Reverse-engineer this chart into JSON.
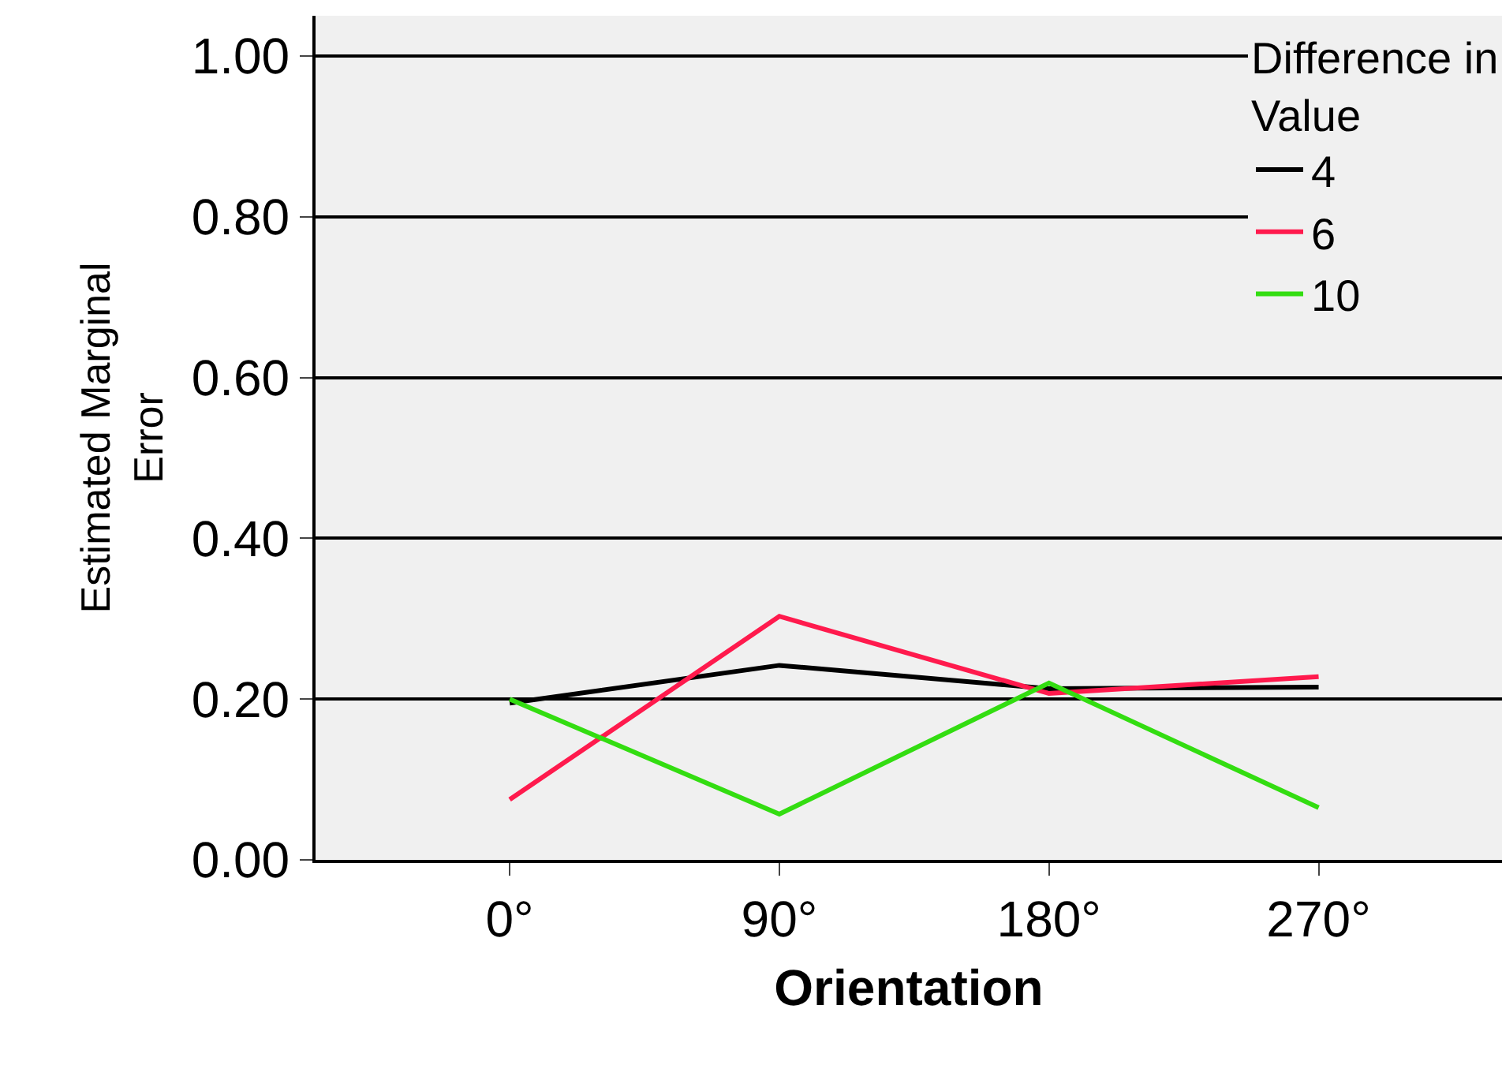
{
  "chart_data": {
    "type": "line",
    "xlabel": "Orientation",
    "ylabel": "Estimated Marginal Error",
    "legend_title": "Difference in Value",
    "categories": [
      "0°",
      "90°",
      "180°",
      "270°"
    ],
    "series": [
      {
        "name": "4",
        "color": "#000000",
        "values": [
          0.195,
          0.242,
          0.213,
          0.215
        ]
      },
      {
        "name": "6",
        "color": "#ff1a4d",
        "values": [
          0.075,
          0.303,
          0.207,
          0.228
        ]
      },
      {
        "name": "10",
        "color": "#33dd11",
        "values": [
          0.2,
          0.057,
          0.22,
          0.065
        ]
      }
    ],
    "ylim": [
      0,
      1.05
    ],
    "yticks": [
      {
        "value": 0,
        "label": "0.00"
      },
      {
        "value": 0.2,
        "label": "0.20"
      },
      {
        "value": 0.4,
        "label": "0.40"
      },
      {
        "value": 0.6,
        "label": "0.60"
      },
      {
        "value": 0.8,
        "label": "0.80"
      },
      {
        "value": 1,
        "label": "1.00"
      }
    ],
    "grid": "y",
    "legend": "top right",
    "marker": "none",
    "line_style": "solid"
  }
}
